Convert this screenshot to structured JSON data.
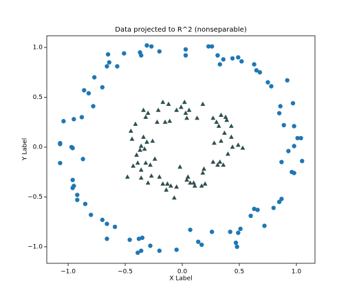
{
  "chart_data": {
    "type": "scatter",
    "title": "Data projected to R^2 (nonseparable)",
    "x_label": "X Label",
    "y_label": "Y Label",
    "xlim": [
      -1.187,
      1.163
    ],
    "ylim": [
      -1.166,
      1.117
    ],
    "xticks": [
      {
        "value": -1,
        "label": "−1.0"
      },
      {
        "value": -0.5,
        "label": "−0.5"
      },
      {
        "value": 0,
        "label": "0.0"
      },
      {
        "value": 0.5,
        "label": "0.5"
      },
      {
        "value": 1,
        "label": "1.0"
      }
    ],
    "yticks": [
      {
        "value": -1,
        "label": "−1.0"
      },
      {
        "value": -0.5,
        "label": "−0.5"
      },
      {
        "value": 0,
        "label": "0.0"
      },
      {
        "value": 0.5,
        "label": "0.5"
      },
      {
        "value": 1,
        "label": "1.0"
      }
    ],
    "series": [
      {
        "color": "#1f77b4",
        "marker": "circle",
        "x": [
          -0.65,
          -0.51,
          -0.37,
          -0.36,
          -0.31,
          -0.27,
          -0.2,
          0.03,
          0.03,
          0.23,
          0.26,
          0.31,
          0.33,
          0.36,
          0.44,
          0.49,
          0.52,
          0.63,
          0.65,
          0.68,
          0.75,
          0.78,
          0.86,
          0.85,
          0.97,
          0.92,
          0.89,
          0.98,
          0.93,
          1.01,
          1.04,
          0.87,
          0.96,
          0.98,
          1.05,
          0.98,
          0.87,
          0.85,
          0.8,
          0.72,
          0.66,
          0.63,
          0.6,
          0.51,
          0.49,
          0.47,
          0.48,
          0.42,
          0.26,
          0.17,
          0.14,
          0.07,
          -0.05,
          -0.2,
          -0.28,
          -0.35,
          -0.38,
          -0.36,
          -0.39,
          -0.46,
          -0.59,
          -0.66,
          -0.66,
          -0.7,
          -0.8,
          -0.85,
          -0.92,
          -0.92,
          -0.96,
          -0.95,
          -0.96,
          -0.87,
          -0.96,
          -0.97,
          -1.07,
          -1.07,
          -1.07,
          -1.04,
          -0.95,
          -0.88,
          -0.78,
          -0.82,
          -0.86,
          -0.77,
          -0.7,
          -0.66,
          -0.64,
          -0.57
        ],
        "values": [
          0.93,
          0.94,
          0.95,
          0.92,
          1.02,
          1.01,
          0.96,
          0.98,
          0.92,
          1.01,
          1.01,
          0.92,
          0.83,
          0.88,
          0.89,
          0.9,
          0.86,
          0.83,
          0.77,
          0.75,
          0.65,
          0.61,
          0.41,
          0.34,
          0.44,
          0.67,
          0.22,
          0.21,
          -0.04,
          0.09,
          0.09,
          -0.15,
          -0.25,
          -0.26,
          -0.14,
          0.01,
          -0.52,
          -0.55,
          -0.61,
          -0.79,
          -0.63,
          -0.62,
          -0.69,
          -0.82,
          -0.86,
          -0.96,
          -1.0,
          -0.85,
          -0.85,
          -0.98,
          -0.95,
          -0.83,
          -1.03,
          -1.04,
          -0.99,
          -0.91,
          -0.92,
          -1.04,
          -1.06,
          -0.93,
          -0.8,
          -0.77,
          -0.92,
          -0.73,
          -0.68,
          -0.57,
          -0.48,
          -0.53,
          -0.41,
          -0.39,
          -0.33,
          -0.12,
          -0.01,
          0.0,
          -0.16,
          0.03,
          0.04,
          0.26,
          0.28,
          0.3,
          0.41,
          0.54,
          0.57,
          0.7,
          0.6,
          0.81,
          0.85,
          0.81
        ]
      },
      {
        "color": "#2f4f4f",
        "marker": "triangle",
        "x": [
          -0.45,
          -0.44,
          -0.41,
          -0.34,
          -0.32,
          -0.3,
          -0.34,
          -0.36,
          -0.37,
          -0.4,
          -0.33,
          -0.31,
          -0.26,
          -0.21,
          -0.17,
          -0.12,
          -0.15,
          -0.22,
          -0.11,
          -0.05,
          -0.01,
          0.02,
          0.06,
          0.03,
          0.04,
          0.13,
          0.18,
          0.27,
          0.3,
          0.34,
          0.38,
          0.39,
          0.43,
          0.32,
          0.37,
          0.43,
          0.34,
          0.28,
          0.44,
          0.49,
          0.53,
          0.4,
          0.33,
          0.36,
          0.31,
          0.27,
          0.19,
          0.18,
          0.2,
          0.17,
          0.1,
          0.11,
          0.07,
          0.04,
          0.05,
          -0.05,
          -0.07,
          -0.14,
          -0.17,
          -0.13,
          -0.2,
          -0.27,
          -0.3,
          -0.36,
          -0.36,
          -0.43,
          -0.39,
          -0.48,
          -0.24,
          -0.28,
          -0.32,
          -0.02,
          -0.1
        ],
        "values": [
          0.16,
          0.08,
          0.23,
          0.37,
          0.3,
          0.34,
          0.1,
          0.01,
          -0.03,
          -0.08,
          -0.02,
          0.05,
          0.06,
          0.37,
          0.45,
          0.43,
          0.25,
          0.25,
          0.26,
          0.37,
          0.4,
          0.45,
          0.37,
          0.34,
          0.29,
          0.29,
          0.43,
          0.29,
          0.25,
          0.32,
          0.3,
          0.27,
          0.21,
          0.21,
          0.14,
          0.1,
          0.06,
          0.04,
          0.0,
          0.02,
          -0.01,
          -0.07,
          -0.15,
          -0.18,
          -0.18,
          -0.15,
          -0.22,
          -0.26,
          -0.37,
          -0.39,
          -0.36,
          -0.39,
          -0.36,
          -0.33,
          -0.3,
          -0.4,
          -0.51,
          -0.43,
          -0.37,
          -0.37,
          -0.3,
          -0.29,
          -0.36,
          -0.31,
          -0.23,
          -0.19,
          -0.16,
          -0.3,
          -0.12,
          -0.18,
          -0.16,
          -0.2,
          -0.39
        ]
      }
    ]
  }
}
